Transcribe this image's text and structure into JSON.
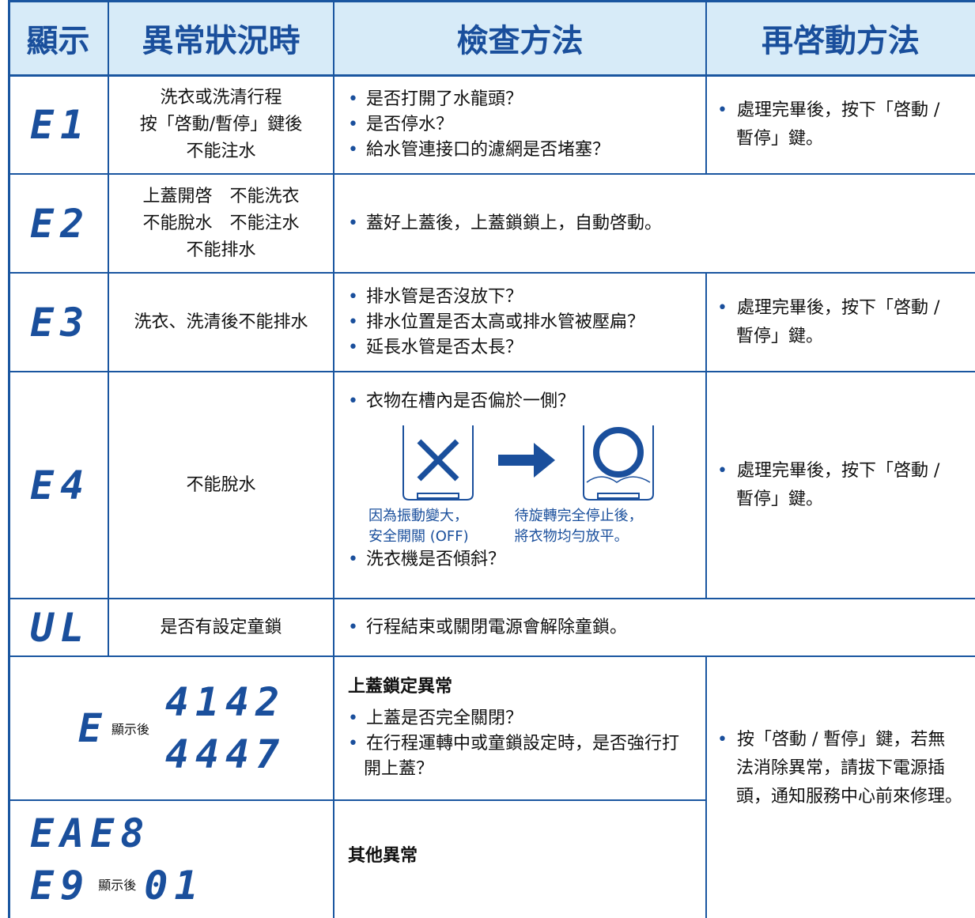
{
  "header": [
    "顯示",
    "異常狀況時",
    "檢查方法",
    "再啓動方法"
  ],
  "rows": [
    {
      "code": "E1",
      "condition": [
        "洗衣或洗清行程",
        "按「啓動/暫停」鍵後",
        "不能注水"
      ],
      "checks": [
        "是否打開了水龍頭？",
        "是否停水？",
        "給水管連接口的濾網是否堵塞？"
      ],
      "restart": "處理完畢後，按下「啓動 / 暫停」鍵。"
    },
    {
      "code": "E2",
      "condition": [
        "上蓋開啓　不能洗衣",
        "不能脫水　不能注水",
        "不能排水"
      ],
      "checks": [
        "蓋好上蓋後，上蓋鎖鎖上，自動啓動。"
      ]
    },
    {
      "code": "E3",
      "condition": [
        "洗衣、洗清後不能排水"
      ],
      "checks": [
        "排水管是否沒放下？",
        "排水位置是否太高或排水管被壓扁？",
        "延長水管是否太長？"
      ],
      "restart": "處理完畢後，按下「啓動 / 暫停」鍵。"
    },
    {
      "code": "E4",
      "condition": [
        "不能脫水"
      ],
      "checks": [
        "衣物在槽內是否偏於一側？",
        "洗衣機是否傾斜？"
      ],
      "captions": [
        [
          "因為振動變大，",
          "安全開關 (OFF)"
        ],
        [
          "待旋轉完全停止後，",
          "將衣物均勻放平。"
        ]
      ],
      "restart": "處理完畢後，按下「啓動 / 暫停」鍵。"
    },
    {
      "code": "UL",
      "condition": [
        "是否有設定童鎖"
      ],
      "checks": [
        "行程結束或關閉電源會解除童鎖。"
      ]
    },
    {
      "code": "E",
      "code_note": "顯示後",
      "code_values": [
        "4142",
        "4447"
      ],
      "check_title": "上蓋鎖定異常",
      "checks": [
        "上蓋是否完全關閉？",
        "在行程運轉中或童鎖設定時，是否強行打開上蓋？"
      ],
      "restart": "按「啓動 / 暫停」鍵，若無法消除異常，請拔下電源插頭，通知服務中心前來修理。"
    },
    {
      "codes": [
        "EAE8",
        "E9"
      ],
      "code_note": "顯示後",
      "code_value": "01",
      "check_title": "其他異常"
    }
  ]
}
